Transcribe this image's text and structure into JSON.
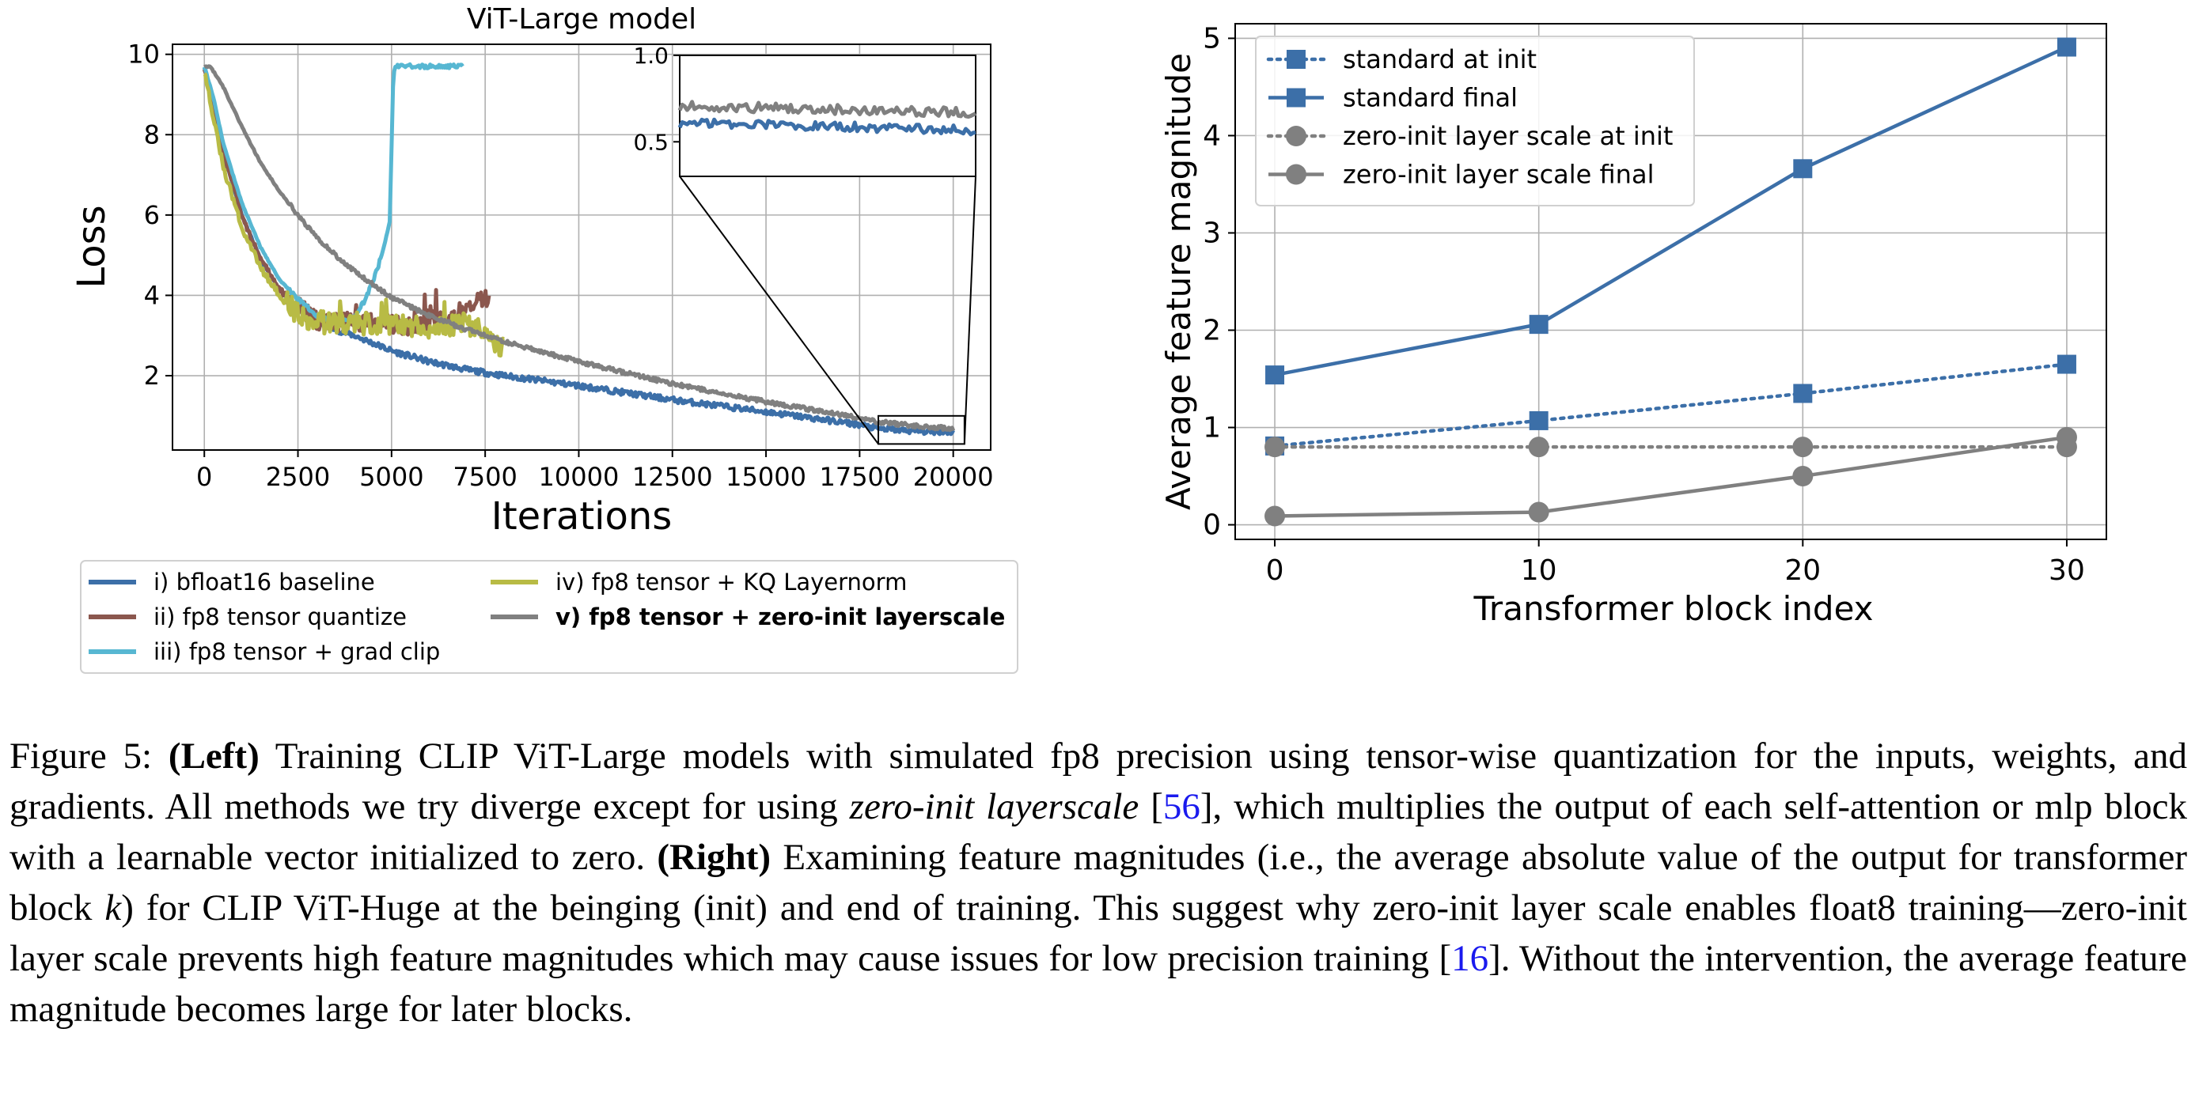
{
  "chart_data": [
    {
      "type": "line",
      "title": "ViT-Large model",
      "xlabel": "Iterations",
      "ylabel": "Loss",
      "xlim": [
        -850,
        21000
      ],
      "ylim": [
        0.15,
        10.25
      ],
      "xticks": [
        0,
        2500,
        5000,
        7500,
        10000,
        12500,
        15000,
        17500,
        20000
      ],
      "yticks": [
        2,
        4,
        6,
        8,
        10
      ],
      "grid": true,
      "legend_placement": "below",
      "series": [
        {
          "name": "i) bfloat16 baseline",
          "color": "#3c6fa8",
          "noise": 0.07,
          "x": [
            0,
            250,
            500,
            1000,
            1500,
            2000,
            2500,
            3000,
            3500,
            4000,
            5000,
            6000,
            7000,
            8000,
            9000,
            10000,
            12500,
            15000,
            17500,
            18000,
            19000,
            20000
          ],
          "y": [
            9.7,
            8.8,
            7.6,
            6.0,
            4.9,
            4.15,
            3.7,
            3.35,
            3.15,
            3.0,
            2.62,
            2.35,
            2.15,
            2.0,
            1.88,
            1.75,
            1.4,
            1.1,
            0.78,
            0.68,
            0.62,
            0.6
          ]
        },
        {
          "name": "ii) fp8 tensor quantize",
          "color": "#8b574e",
          "noise": 0.25,
          "x": [
            0,
            250,
            500,
            1000,
            1500,
            2000,
            2500,
            3000,
            3500,
            4000,
            4500,
            5000,
            5500,
            6000,
            6500,
            7000,
            7300,
            7500,
            7600
          ],
          "y": [
            9.7,
            8.8,
            7.6,
            6.0,
            4.9,
            4.15,
            3.7,
            3.4,
            3.3,
            3.4,
            3.3,
            3.3,
            3.25,
            3.4,
            3.3,
            3.6,
            3.8,
            3.9,
            4.0
          ]
        },
        {
          "name": "iii) fp8 tensor + grad clip",
          "color": "#57b7d2",
          "noise": 0.05,
          "x": [
            0,
            250,
            500,
            1000,
            1500,
            2000,
            2500,
            3000,
            3500,
            4000,
            4300,
            4600,
            4800,
            4950,
            5050,
            5150,
            5400,
            6000,
            6500,
            6900
          ],
          "y": [
            9.7,
            8.9,
            7.8,
            6.3,
            5.2,
            4.4,
            3.9,
            3.5,
            3.35,
            3.45,
            3.9,
            4.6,
            5.2,
            5.8,
            9.6,
            9.7,
            9.7,
            9.7,
            9.7,
            9.7
          ]
        },
        {
          "name": "iv) fp8 tensor + KQ Layernorm",
          "color": "#b8bb45",
          "noise": 0.28,
          "x": [
            0,
            250,
            500,
            1000,
            1500,
            2000,
            2500,
            3000,
            3500,
            4000,
            5000,
            6000,
            7000,
            7500,
            7700,
            8000
          ],
          "y": [
            9.6,
            8.4,
            7.2,
            5.7,
            4.7,
            4.0,
            3.55,
            3.35,
            3.3,
            3.3,
            3.3,
            3.2,
            3.3,
            3.1,
            2.9,
            2.7
          ]
        },
        {
          "name": "v) fp8 tensor + zero-init layerscale",
          "color": "#808080",
          "noise": 0.05,
          "bold": true,
          "x": [
            0,
            150,
            300,
            500,
            1000,
            1500,
            2000,
            2500,
            3000,
            3500,
            4000,
            5000,
            6000,
            7000,
            8000,
            9000,
            10000,
            12500,
            15000,
            17500,
            18000,
            19000,
            20000
          ],
          "y": [
            9.7,
            9.7,
            9.5,
            9.2,
            8.2,
            7.3,
            6.6,
            6.0,
            5.45,
            5.0,
            4.6,
            3.95,
            3.5,
            3.15,
            2.85,
            2.6,
            2.35,
            1.8,
            1.35,
            0.95,
            0.85,
            0.75,
            0.68
          ]
        }
      ],
      "inset": {
        "xlim": [
          18000,
          20300
        ],
        "ylim": [
          0.3,
          1.0
        ],
        "yticks": [
          "1.0",
          "0.5"
        ],
        "series": [
          {
            "name": "v) fp8 tensor + zero-init layerscale",
            "color": "#808080",
            "x": [
              18000,
              19000,
              20300
            ],
            "y": [
              0.71,
              0.69,
              0.67
            ],
            "noise": 0.035
          },
          {
            "name": "i) bfloat16 baseline",
            "color": "#3c6fa8",
            "x": [
              18000,
              19000,
              20300
            ],
            "y": [
              0.61,
              0.59,
              0.57
            ],
            "noise": 0.035
          }
        ]
      }
    },
    {
      "type": "line",
      "title": "",
      "xlabel": "Transformer block index",
      "ylabel": "Average feature magnitude",
      "xlim": [
        -1.5,
        31.5
      ],
      "ylim": [
        -0.15,
        5.15
      ],
      "xticks": [
        0,
        10,
        20,
        30
      ],
      "yticks": [
        0,
        1,
        2,
        3,
        4,
        5
      ],
      "grid": true,
      "legend_placement": "top-left",
      "x": [
        0,
        10,
        20,
        30
      ],
      "series": [
        {
          "name": "standard at init",
          "color": "#3c6fa8",
          "marker": "square",
          "style": "dotted",
          "values": [
            0.81,
            1.07,
            1.35,
            1.65
          ]
        },
        {
          "name": "standard final",
          "color": "#3c6fa8",
          "marker": "square",
          "style": "solid",
          "values": [
            1.54,
            2.06,
            3.66,
            4.91
          ]
        },
        {
          "name": "zero-init layer scale at init",
          "color": "#808080",
          "marker": "circle",
          "style": "dotted",
          "values": [
            0.8,
            0.8,
            0.8,
            0.8
          ]
        },
        {
          "name": "zero-init layer scale final",
          "color": "#808080",
          "marker": "circle",
          "style": "solid",
          "values": [
            0.09,
            0.13,
            0.5,
            0.9
          ]
        }
      ]
    }
  ],
  "caption": {
    "label": "Figure 5:",
    "left_tag": "(Left)",
    "text_a": "Training CLIP ViT-Large models with simulated fp8 precision using tensor-wise quantization for the inputs, weights, and gradients. All methods we try diverge except for using",
    "emph": "zero-init layerscale",
    "ref_a": "56",
    "text_b": ", which multiplies the output of each self-attention or mlp block with a learnable vector initialized to zero.",
    "right_tag": "(Right)",
    "text_c": "Examining feature magnitudes (i.e., the average absolute value of the output for transformer block",
    "var_k": "k",
    "text_d": ") for CLIP ViT-Huge at the beinging (init) and end of training. This suggest why zero-init layer scale enables float8 training—zero-init layer scale prevents high feature magnitudes which may cause issues for low precision training",
    "ref_b": "16",
    "text_e": ". Without the intervention, the average feature magnitude becomes large for later blocks."
  }
}
